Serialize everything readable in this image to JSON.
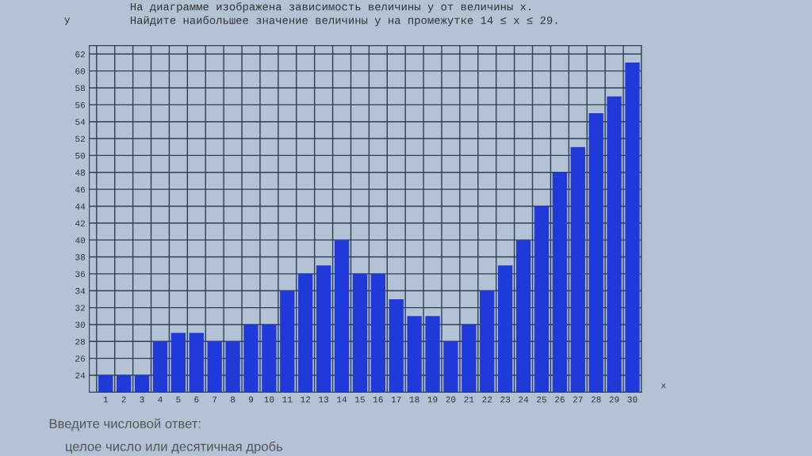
{
  "chart_data": {
    "type": "bar",
    "title": "На диаграмме изображена зависимость величины y от величины x.\nНайдите наибольшее значение величины y на промежутке 14 ≤ x ≤ 29.",
    "xlabel": "x",
    "ylabel": "y",
    "categories": [
      "1",
      "2",
      "3",
      "4",
      "5",
      "6",
      "7",
      "8",
      "9",
      "10",
      "11",
      "12",
      "13",
      "14",
      "15",
      "16",
      "17",
      "18",
      "19",
      "20",
      "21",
      "22",
      "23",
      "24",
      "25",
      "26",
      "27",
      "28",
      "29",
      "30"
    ],
    "values": [
      24,
      24,
      24,
      28,
      29,
      29,
      28,
      28,
      30,
      30,
      34,
      36,
      37,
      40,
      36,
      36,
      33,
      31,
      31,
      28,
      30,
      34,
      37,
      40,
      44,
      48,
      51,
      55,
      57,
      61
    ],
    "color": "#1f3ad8",
    "ylim": [
      22,
      63
    ],
    "yticks": [
      24,
      26,
      28,
      30,
      32,
      34,
      36,
      38,
      40,
      42,
      44,
      46,
      48,
      50,
      52,
      54,
      56,
      58,
      60,
      62
    ],
    "grid": true,
    "annotations": [
      "Введите числовой ответ:",
      "целое число или десятичная дробь"
    ]
  }
}
